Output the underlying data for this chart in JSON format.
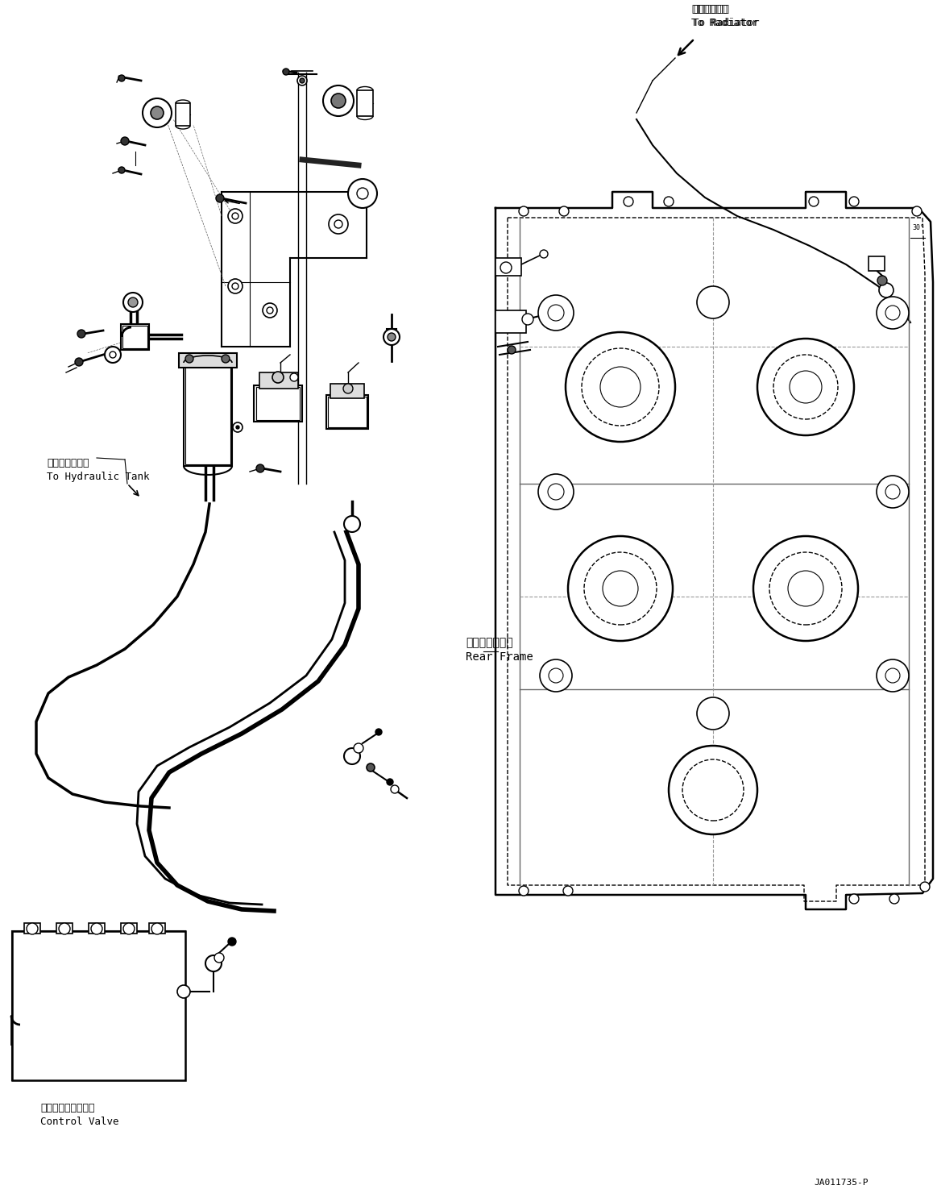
{
  "bg_color": "#ffffff",
  "line_color": "#000000",
  "fig_width": 11.63,
  "fig_height": 14.91,
  "dpi": 100,
  "labels": {
    "radiator_jp": "ラジエータへ",
    "radiator_en": "To Radiator",
    "hydraulic_jp": "作動油タンクへ",
    "hydraulic_en": "To Hydraulic Tank",
    "rear_frame_jp": "リヤーフレーム",
    "rear_frame_en": "Rear Frame",
    "control_valve_jp": "コントロールバルブ",
    "control_valve_en": "Control Valve",
    "part_number": "JA011735-P"
  }
}
